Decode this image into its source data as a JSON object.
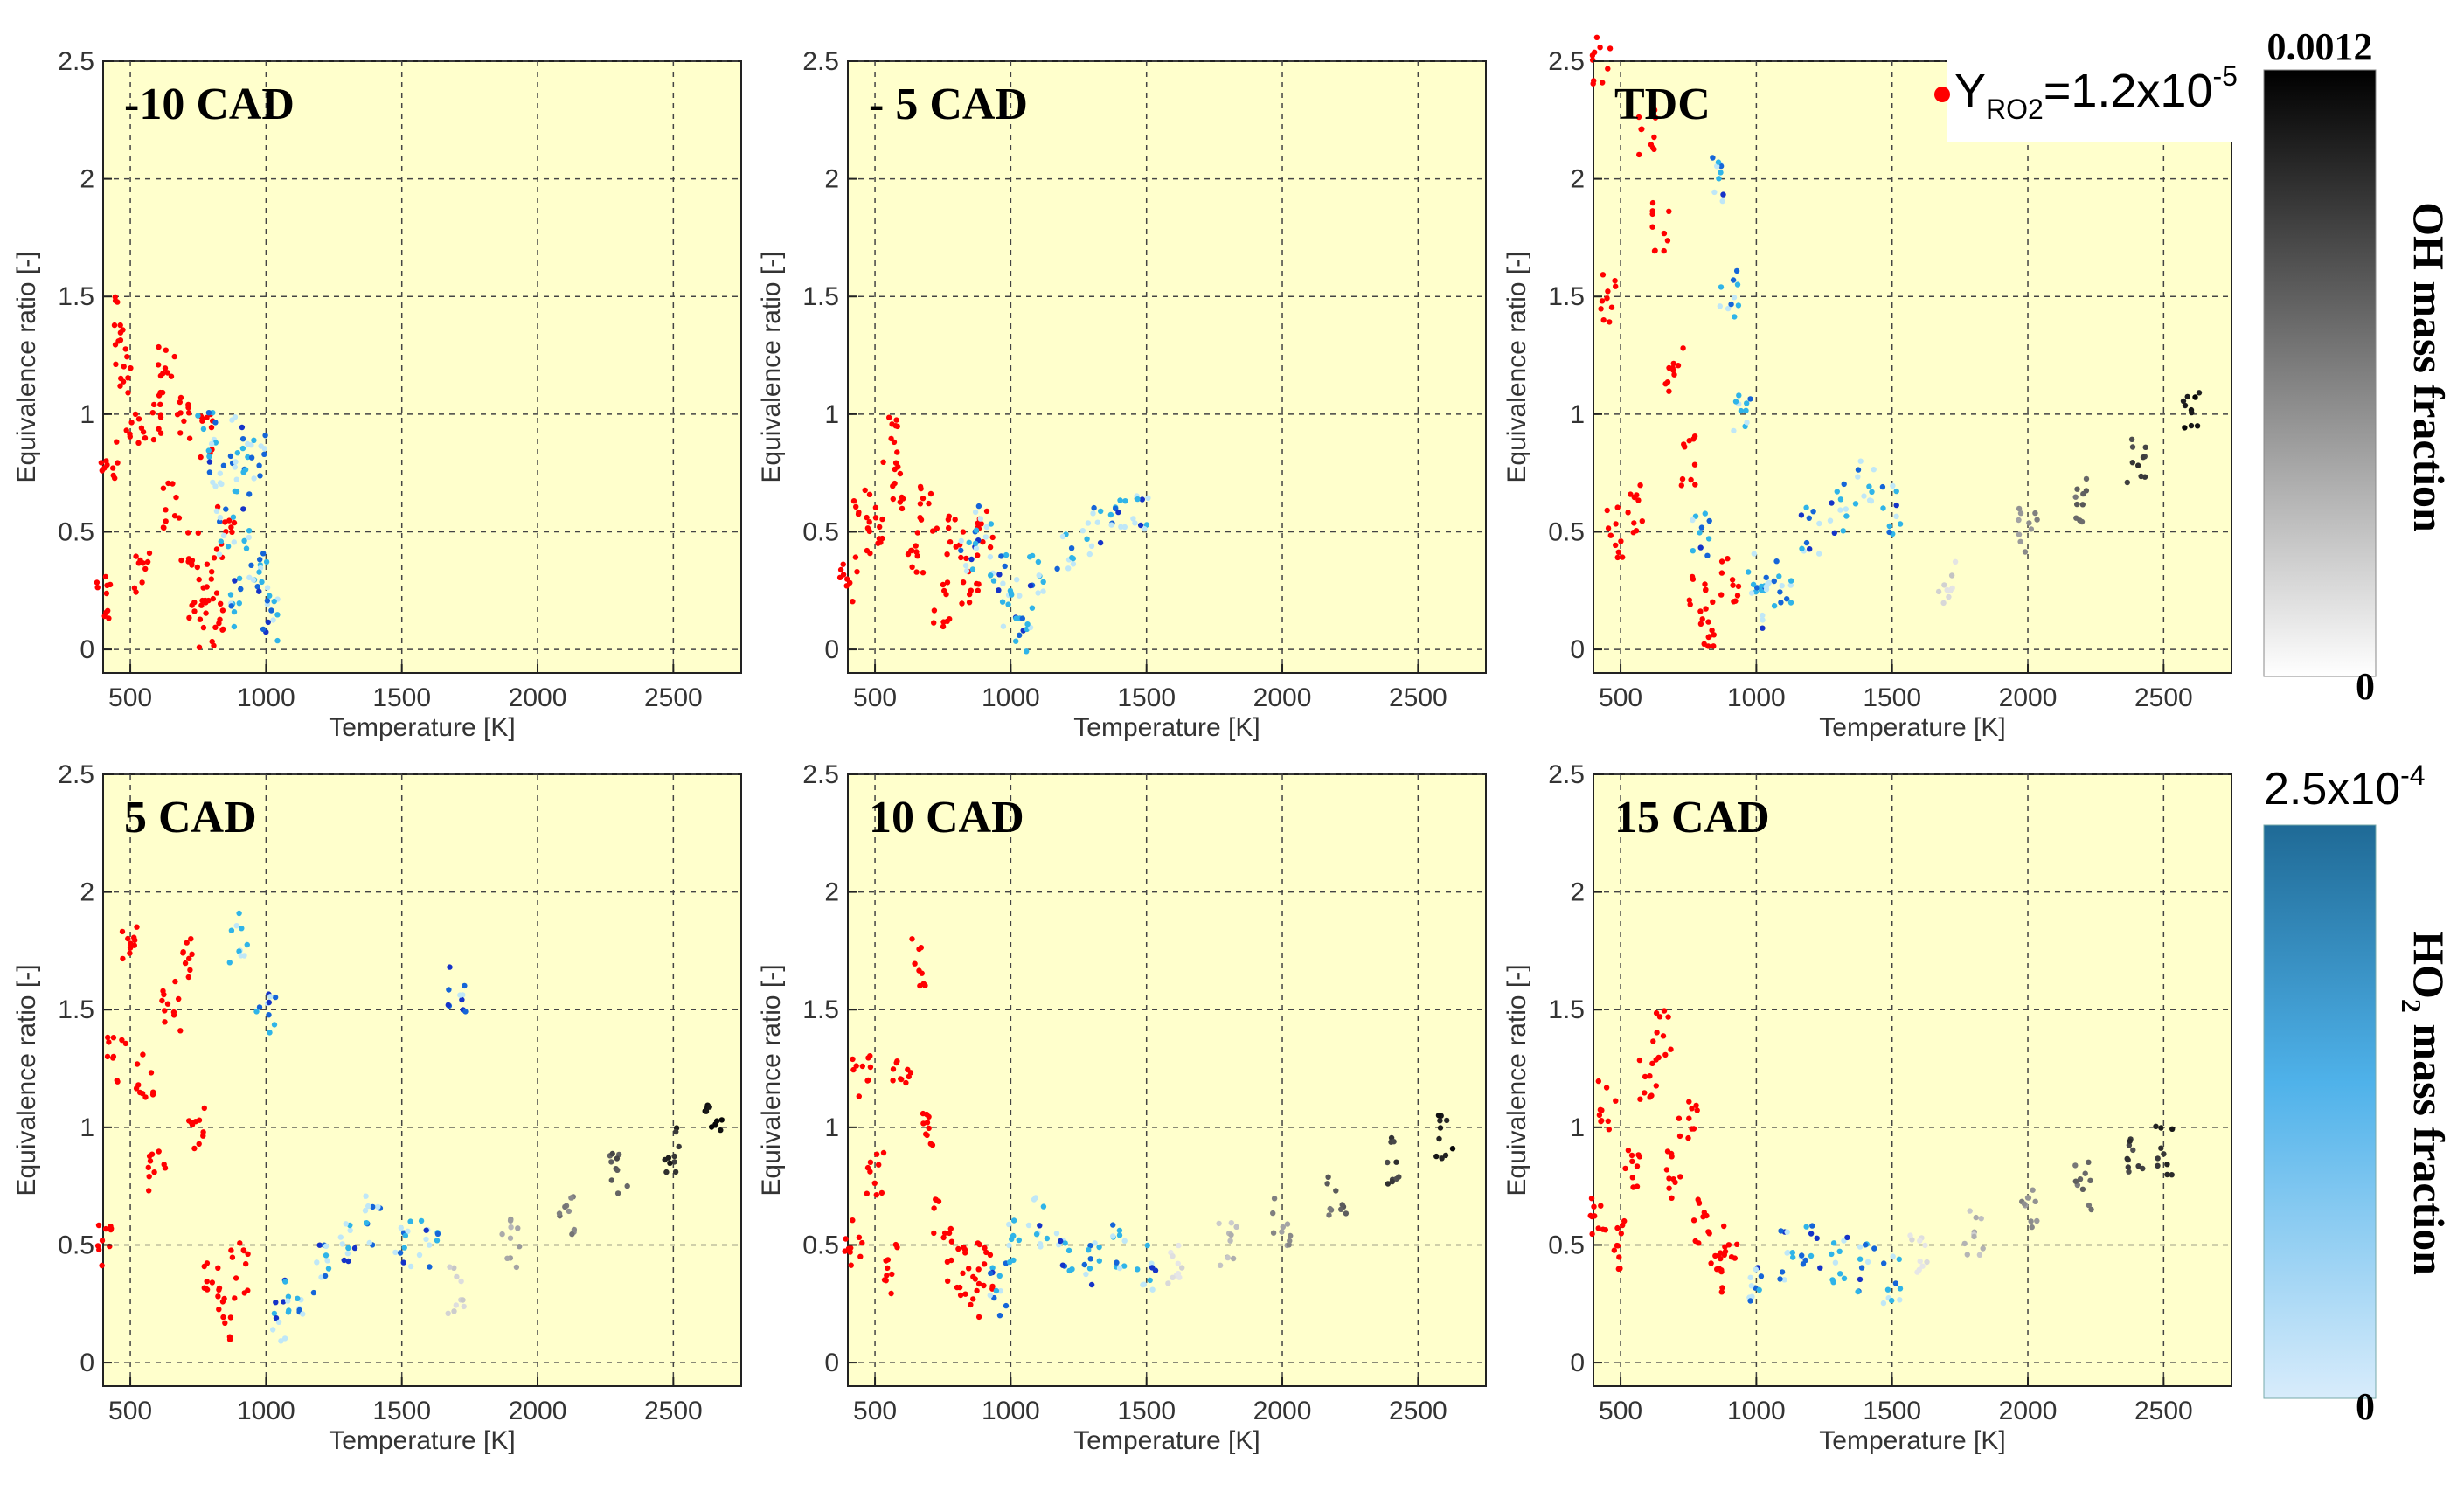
{
  "figure": {
    "x_axis_label": "Temperature [K]",
    "y_axis_label": "Equivalence ratio [-]",
    "x_ticks": [
      500,
      1000,
      1500,
      2000,
      2500
    ],
    "y_ticks": [
      "0",
      "0.5",
      "1",
      "1.5",
      "2",
      "2.5"
    ],
    "legend": {
      "marker_color": "#ff0000",
      "text_Y": "Y",
      "text_sub": "RO2",
      "text_eq": "=1.2x10",
      "text_exp": "-5"
    },
    "colorbars": {
      "oh": {
        "label": "OH  mass fraction",
        "max_label": "0.0012",
        "min_label": "0",
        "color_high": "#000000",
        "color_low": "#ffffff"
      },
      "ho2": {
        "label_pre": "HO",
        "label_sub": "2",
        "label_post": " mass fraction",
        "max_base": "2.5x10",
        "max_exp": "-4",
        "min_label": "0",
        "color_high": "#1f6a96",
        "color_low": "#d8ecfb"
      }
    },
    "colors": {
      "panel_background": "#ffffcc",
      "grid": "#444444",
      "ro2": "#ff0000",
      "ho2_light": "#bfe7f7",
      "ho2_mid": "#2fb4e8",
      "ho2_blue": "#1565d8",
      "ho2_dark": "#1533c8",
      "oh_light": "#d8d8d8",
      "oh_dark": "#000000"
    }
  },
  "chart_data": [
    {
      "type": "scatter",
      "title": "-10 CAD",
      "xlabel": "Temperature [K]",
      "ylabel": "Equivalence ratio [-]",
      "xlim": [
        400,
        2750
      ],
      "ylim": [
        -0.1,
        2.5
      ],
      "grid": true,
      "series": [
        {
          "color": "ro2",
          "points": [
            [
              400,
              0.2
            ],
            [
              420,
              0.8
            ],
            [
              450,
              1.4
            ],
            [
              480,
              1.2
            ],
            [
              520,
              0.9
            ],
            [
              550,
              0.3
            ],
            [
              600,
              1.0
            ],
            [
              630,
              1.2
            ],
            [
              650,
              0.6
            ],
            [
              700,
              1.0
            ],
            [
              720,
              0.4
            ],
            [
              750,
              0.1
            ],
            [
              780,
              0.9
            ],
            [
              800,
              0.3
            ],
            [
              820,
              0.1
            ],
            [
              850,
              0.5
            ]
          ]
        },
        {
          "color": "ho2_mid",
          "points": [
            [
              780,
              0.9
            ],
            [
              820,
              0.8
            ],
            [
              850,
              0.5
            ],
            [
              880,
              0.2
            ],
            [
              900,
              0.9
            ],
            [
              920,
              0.7
            ],
            [
              950,
              0.4
            ],
            [
              970,
              0.8
            ],
            [
              990,
              0.3
            ],
            [
              1010,
              0.12
            ]
          ]
        }
      ]
    },
    {
      "type": "scatter",
      "title": "- 5 CAD",
      "xlabel": "Temperature [K]",
      "ylabel": "Equivalence ratio [-]",
      "xlim": [
        400,
        2750
      ],
      "ylim": [
        -0.1,
        2.5
      ],
      "grid": true,
      "series": [
        {
          "color": "ro2",
          "points": [
            [
              400,
              0.3
            ],
            [
              450,
              0.6
            ],
            [
              500,
              0.5
            ],
            [
              550,
              0.9
            ],
            [
              600,
              0.7
            ],
            [
              650,
              0.4
            ],
            [
              700,
              0.6
            ],
            [
              750,
              0.2
            ],
            [
              800,
              0.5
            ],
            [
              850,
              0.3
            ],
            [
              900,
              0.5
            ]
          ]
        },
        {
          "color": "ho2_mid",
          "points": [
            [
              850,
              0.4
            ],
            [
              900,
              0.5
            ],
            [
              950,
              0.3
            ],
            [
              1000,
              0.2
            ],
            [
              1050,
              0.1
            ],
            [
              1100,
              0.3
            ],
            [
              1200,
              0.4
            ],
            [
              1300,
              0.5
            ],
            [
              1400,
              0.55
            ],
            [
              1480,
              0.55
            ]
          ]
        }
      ]
    },
    {
      "type": "scatter",
      "title": "TDC",
      "xlabel": "Temperature [K]",
      "ylabel": "Equivalence ratio [-]",
      "xlim": [
        400,
        2750
      ],
      "ylim": [
        -0.1,
        2.5
      ],
      "grid": true,
      "series": [
        {
          "color": "ro2",
          "points": [
            [
              430,
              2.5
            ],
            [
              450,
              1.5
            ],
            [
              480,
              0.5
            ],
            [
              550,
              0.6
            ],
            [
              600,
              2.2
            ],
            [
              650,
              1.8
            ],
            [
              700,
              1.2
            ],
            [
              750,
              0.8
            ],
            [
              780,
              0.2
            ],
            [
              830,
              0.1
            ],
            [
              900,
              0.3
            ]
          ]
        },
        {
          "color": "ho2_mid",
          "points": [
            [
              800,
              0.5
            ],
            [
              850,
              2.0
            ],
            [
              900,
              1.5
            ],
            [
              950,
              1.0
            ],
            [
              1000,
              0.3
            ],
            [
              1050,
              0.2
            ],
            [
              1100,
              0.3
            ],
            [
              1200,
              0.5
            ],
            [
              1300,
              0.6
            ],
            [
              1400,
              0.7
            ],
            [
              1500,
              0.6
            ]
          ]
        },
        {
          "color": "oh_dark",
          "points": [
            [
              1700,
              0.3
            ],
            [
              2000,
              0.5
            ],
            [
              2200,
              0.65
            ],
            [
              2400,
              0.8
            ],
            [
              2600,
              1.0
            ]
          ]
        }
      ]
    },
    {
      "type": "scatter",
      "title": "5 CAD",
      "xlabel": "Temperature [K]",
      "ylabel": "Equivalence ratio [-]",
      "xlim": [
        400,
        2750
      ],
      "ylim": [
        -0.1,
        2.5
      ],
      "grid": true,
      "series": [
        {
          "color": "ro2",
          "points": [
            [
              400,
              0.5
            ],
            [
              450,
              1.3
            ],
            [
              500,
              1.8
            ],
            [
              550,
              1.2
            ],
            [
              600,
              0.8
            ],
            [
              650,
              1.5
            ],
            [
              700,
              1.7
            ],
            [
              750,
              1.0
            ],
            [
              800,
              0.4
            ],
            [
              850,
              0.2
            ],
            [
              900,
              0.4
            ]
          ]
        },
        {
          "color": "ho2_mid",
          "points": [
            [
              900,
              1.8
            ],
            [
              1000,
              1.5
            ],
            [
              1050,
              0.2
            ],
            [
              1100,
              0.3
            ],
            [
              1200,
              0.4
            ],
            [
              1300,
              0.5
            ],
            [
              1400,
              0.6
            ],
            [
              1500,
              0.5
            ],
            [
              1600,
              0.5
            ],
            [
              1700,
              1.6
            ]
          ]
        },
        {
          "color": "oh_dark",
          "points": [
            [
              1700,
              0.3
            ],
            [
              1900,
              0.5
            ],
            [
              2100,
              0.6
            ],
            [
              2300,
              0.8
            ],
            [
              2500,
              0.9
            ],
            [
              2650,
              1.0
            ]
          ]
        }
      ]
    },
    {
      "type": "scatter",
      "title": "10 CAD",
      "xlabel": "Temperature [K]",
      "ylabel": "Equivalence ratio [-]",
      "xlim": [
        400,
        2750
      ],
      "ylim": [
        -0.1,
        2.5
      ],
      "grid": true,
      "series": [
        {
          "color": "ro2",
          "points": [
            [
              420,
              0.5
            ],
            [
              450,
              1.2
            ],
            [
              500,
              0.8
            ],
            [
              550,
              0.4
            ],
            [
              600,
              1.2
            ],
            [
              650,
              1.7
            ],
            [
              700,
              1.0
            ],
            [
              750,
              0.6
            ],
            [
              800,
              0.4
            ],
            [
              850,
              0.3
            ],
            [
              900,
              0.4
            ]
          ]
        },
        {
          "color": "ho2_mid",
          "points": [
            [
              950,
              0.3
            ],
            [
              1000,
              0.5
            ],
            [
              1100,
              0.6
            ],
            [
              1200,
              0.5
            ],
            [
              1300,
              0.4
            ],
            [
              1400,
              0.5
            ],
            [
              1500,
              0.4
            ]
          ]
        },
        {
          "color": "oh_dark",
          "points": [
            [
              1600,
              0.4
            ],
            [
              1800,
              0.5
            ],
            [
              2000,
              0.6
            ],
            [
              2200,
              0.7
            ],
            [
              2400,
              0.85
            ],
            [
              2600,
              0.95
            ]
          ]
        }
      ]
    },
    {
      "type": "scatter",
      "title": "15 CAD",
      "xlabel": "Temperature [K]",
      "ylabel": "Equivalence ratio [-]",
      "xlim": [
        400,
        2750
      ],
      "ylim": [
        -0.1,
        2.5
      ],
      "grid": true,
      "series": [
        {
          "color": "ro2",
          "points": [
            [
              420,
              0.6
            ],
            [
              450,
              1.1
            ],
            [
              500,
              0.5
            ],
            [
              550,
              0.8
            ],
            [
              600,
              1.2
            ],
            [
              650,
              1.4
            ],
            [
              700,
              0.8
            ],
            [
              750,
              1.0
            ],
            [
              800,
              0.6
            ],
            [
              850,
              0.5
            ],
            [
              900,
              0.4
            ]
          ]
        },
        {
          "color": "ho2_mid",
          "points": [
            [
              1000,
              0.3
            ],
            [
              1100,
              0.45
            ],
            [
              1200,
              0.5
            ],
            [
              1300,
              0.45
            ],
            [
              1400,
              0.4
            ],
            [
              1500,
              0.35
            ]
          ]
        },
        {
          "color": "oh_dark",
          "points": [
            [
              1600,
              0.45
            ],
            [
              1800,
              0.55
            ],
            [
              2000,
              0.65
            ],
            [
              2200,
              0.75
            ],
            [
              2400,
              0.85
            ],
            [
              2500,
              0.9
            ]
          ]
        }
      ]
    }
  ]
}
